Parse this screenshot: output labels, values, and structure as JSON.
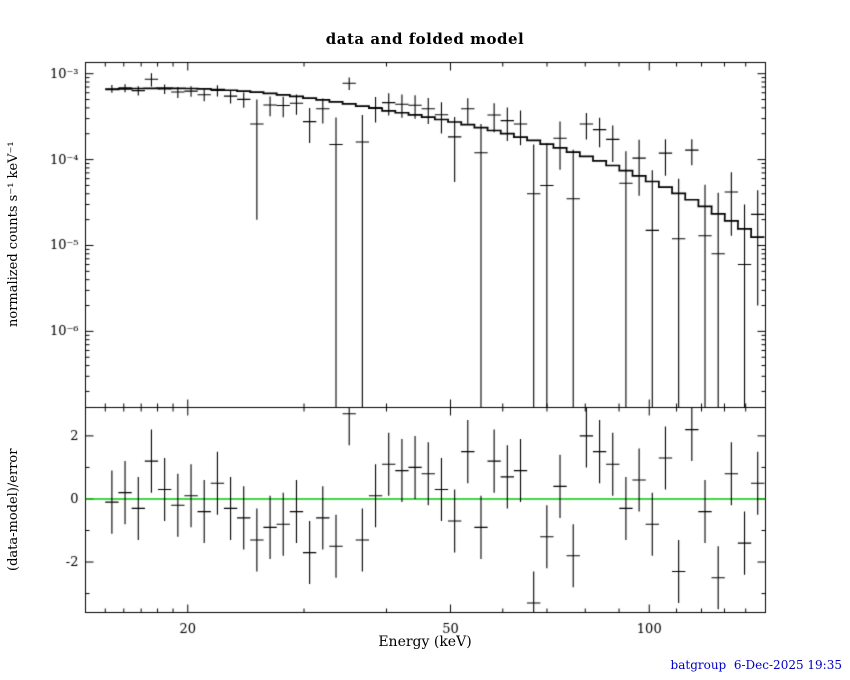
{
  "footer": "batgroup  6-Dec-2025 19:35",
  "colors": {
    "background": "#ffffff",
    "data": "#000000",
    "model": "#000000",
    "zero_line": "#00C800",
    "footer_text": "#0000C8"
  },
  "chart_data": [
    {
      "type": "scatter",
      "title": "data and folded model",
      "xlabel": "",
      "ylabel": "normalized counts s⁻¹ keV⁻¹",
      "x_scale": "log",
      "y_scale": "log",
      "grid": false,
      "legend": "none",
      "xlim": [
        14,
        150
      ],
      "ylim": [
        1.3e-07,
        0.00135
      ],
      "x_ticks": [
        20,
        50,
        100
      ],
      "y_tick_labels": [
        "10⁻³",
        "10⁻⁴",
        "10⁻⁵",
        "10⁻⁶"
      ],
      "y_tick_values": [
        0.001,
        0.0001,
        1e-05,
        1e-06
      ],
      "x": [
        15.35,
        16.07,
        16.83,
        17.62,
        18.45,
        19.32,
        20.23,
        21.18,
        22.18,
        23.22,
        24.31,
        25.45,
        26.65,
        27.9,
        29.22,
        30.59,
        32.03,
        33.54,
        35.12,
        36.77,
        38.5,
        40.31,
        42.21,
        44.19,
        46.27,
        48.45,
        50.73,
        53.11,
        55.61,
        58.22,
        60.96,
        63.83,
        66.83,
        69.97,
        73.26,
        76.71,
        80.32,
        84.1,
        88.05,
        92.19,
        96.53,
        101.07,
        105.82,
        110.8,
        116.01,
        121.47,
        127.18,
        133.16,
        139.42,
        145.98
      ],
      "series": [
        {
          "name": "data",
          "style": "cross-errorbar",
          "values": [
            0.000669,
            0.000683,
            0.000635,
            0.00086,
            0.000664,
            0.000611,
            0.000626,
            0.000569,
            0.000639,
            0.000548,
            0.000502,
            0.00026,
            0.000432,
            0.000426,
            0.000452,
            0.000277,
            0.00039,
            0.00015,
            0.000775,
            0.00016,
            0.000403,
            0.00046,
            0.00044,
            0.00043,
            0.00039,
            0.000333,
            0.000184,
            0.00039,
            0.00012,
            0.00033,
            0.000284,
            0.00026,
            4e-05,
            5e-05,
            0.000177,
            3.5e-05,
            0.00026,
            0.000223,
            0.000172,
            5.3e-05,
            0.000104,
            1.5e-05,
            0.000119,
            1.2e-05,
            0.000129,
            1.3e-05,
            8e-06,
            4.2e-05,
            6e-06,
            2.3e-05
          ],
          "errors": [
            6.8e-05,
            7.3e-05,
            7.9e-05,
            0.00015,
            8.3e-05,
            8.8e-05,
            8.6e-05,
            9.1e-05,
            9.5e-05,
            9.8e-05,
            0.000101,
            0.00024,
            0.000112,
            0.000114,
            0.00012,
            0.000121,
            0.000126,
            0.00016,
            0.000128,
            0.00017,
            0.000133,
            0.000133,
            0.000133,
            0.000132,
            0.000131,
            0.000132,
            0.000129,
            0.000128,
            0.00014,
            0.000122,
            0.000119,
            0.000113,
            0.00011,
            0.000105,
            0.000101,
            9.5e-05,
            8.9e-05,
            8.4e-05,
            7.8e-05,
            7.2e-05,
            6.6e-05,
            6e-05,
            5.4e-05,
            4.8e-05,
            4.3e-05,
            3.8e-05,
            3.3e-05,
            2.9e-05,
            2.4e-05,
            2.1e-05
          ]
        },
        {
          "name": "folded model",
          "style": "step-line",
          "values": [
            0.000655,
            0.000665,
            0.000672,
            0.000676,
            0.000678,
            0.000676,
            0.000672,
            0.000665,
            0.000655,
            0.000642,
            0.000627,
            0.00061,
            0.00059,
            0.000568,
            0.000545,
            0.00052,
            0.000495,
            0.00047,
            0.000445,
            0.00042,
            0.000396,
            0.00037,
            0.000351,
            0.000331,
            0.000312,
            0.000293,
            0.000274,
            0.000255,
            0.000236,
            0.000218,
            0.000201,
            0.000183,
            0.000167,
            0.000151,
            0.000137,
            0.000122,
            0.000109,
            9.66e-05,
            8.53e-05,
            7.45e-05,
            6.46e-05,
            5.56e-05,
            4.78e-05,
            4.04e-05,
            3.41e-05,
            2.85e-05,
            2.34e-05,
            1.93e-05,
            1.56e-05,
            1.25e-05
          ]
        }
      ]
    },
    {
      "type": "scatter",
      "title": "",
      "xlabel": "Energy (keV)",
      "ylabel": "(data-model)/error",
      "x_scale": "log",
      "y_scale": "linear",
      "grid": false,
      "legend": "none",
      "xlim": [
        14,
        150
      ],
      "ylim": [
        -3.6,
        2.9
      ],
      "x_ticks": [
        20,
        50,
        100
      ],
      "y_ticks": [
        2,
        0,
        -2
      ],
      "zero_line_value": 0,
      "x": [
        15.35,
        16.07,
        16.83,
        17.62,
        18.45,
        19.32,
        20.23,
        21.18,
        22.18,
        23.22,
        24.31,
        25.45,
        26.65,
        27.9,
        29.22,
        30.59,
        32.03,
        33.54,
        35.12,
        36.77,
        38.5,
        40.31,
        42.21,
        44.19,
        46.27,
        48.45,
        50.73,
        53.11,
        55.61,
        58.22,
        60.96,
        63.83,
        66.83,
        69.97,
        73.26,
        76.71,
        80.32,
        84.1,
        88.05,
        92.19,
        96.53,
        101.07,
        105.82,
        110.8,
        116.01,
        121.47,
        127.18,
        133.16,
        139.42,
        145.98
      ],
      "series": [
        {
          "name": "(data-model)/error",
          "style": "cross-errorbar",
          "values": [
            -0.1,
            0.2,
            -0.3,
            1.2,
            0.3,
            -0.2,
            0.1,
            -0.4,
            0.5,
            -0.3,
            -0.6,
            -1.3,
            -0.9,
            -0.8,
            -0.4,
            -1.7,
            -0.6,
            -1.5,
            2.7,
            -1.3,
            0.1,
            1.1,
            0.9,
            1.0,
            0.8,
            0.3,
            -0.7,
            1.5,
            -0.9,
            1.2,
            0.7,
            0.9,
            -3.3,
            -1.2,
            0.4,
            -1.8,
            2.0,
            1.5,
            1.1,
            -0.3,
            0.6,
            -0.8,
            1.3,
            -2.3,
            2.2,
            -0.4,
            -2.5,
            0.8,
            -1.4,
            0.5
          ],
          "errors_uniform": 1.0
        }
      ]
    }
  ]
}
